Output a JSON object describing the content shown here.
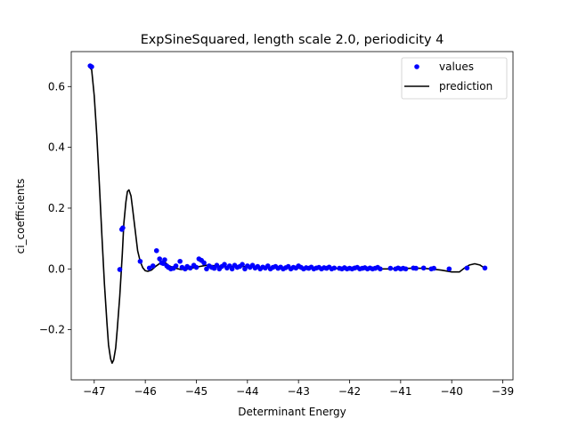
{
  "chart_data": {
    "type": "scatter",
    "title": "ExpSineSquared, length scale 2.0, periodicity 4",
    "xlabel": "Determinant Energy",
    "ylabel": "ci_coefficients",
    "xlim": [
      -47.45,
      -38.8
    ],
    "ylim": [
      -0.365,
      0.715
    ],
    "xticks": [
      -47,
      -46,
      -45,
      -44,
      -43,
      -42,
      -41,
      -40,
      -39
    ],
    "yticks": [
      -0.2,
      0.0,
      0.2,
      0.4,
      0.6
    ],
    "ytick_labels": [
      "−0.2",
      "0.0",
      "0.2",
      "0.4",
      "0.6"
    ],
    "xtick_labels": [
      "−47",
      "−46",
      "−45",
      "−44",
      "−43",
      "−42",
      "−41",
      "−40",
      "−39"
    ],
    "grid": false,
    "legend_position": "top-right",
    "colors": {
      "values": "#0000ff",
      "prediction": "#000000"
    },
    "series": [
      {
        "name": "values",
        "kind": "scatter",
        "points": [
          [
            -47.08,
            0.668
          ],
          [
            -47.05,
            0.665
          ],
          [
            -46.46,
            0.13
          ],
          [
            -46.44,
            0.135
          ],
          [
            -46.5,
            -0.002
          ],
          [
            -46.1,
            0.025
          ],
          [
            -45.92,
            0.003
          ],
          [
            -45.85,
            0.01
          ],
          [
            -45.78,
            0.06
          ],
          [
            -45.72,
            0.033
          ],
          [
            -45.68,
            0.02
          ],
          [
            -45.65,
            0.018
          ],
          [
            -45.62,
            0.03
          ],
          [
            -45.58,
            0.01
          ],
          [
            -45.55,
            0.005
          ],
          [
            -45.5,
            0.0
          ],
          [
            -45.45,
            0.002
          ],
          [
            -45.4,
            0.01
          ],
          [
            -45.32,
            0.025
          ],
          [
            -45.28,
            0.005
          ],
          [
            -45.22,
            0.0
          ],
          [
            -45.18,
            0.008
          ],
          [
            -45.12,
            0.003
          ],
          [
            -45.05,
            0.012
          ],
          [
            -45.0,
            0.005
          ],
          [
            -44.95,
            0.033
          ],
          [
            -44.9,
            0.028
          ],
          [
            -44.85,
            0.02
          ],
          [
            -44.8,
            0.0
          ],
          [
            -44.75,
            0.01
          ],
          [
            -44.7,
            0.005
          ],
          [
            -44.65,
            0.002
          ],
          [
            -44.6,
            0.012
          ],
          [
            -44.55,
            0.0
          ],
          [
            -44.5,
            0.008
          ],
          [
            -44.45,
            0.015
          ],
          [
            -44.4,
            0.003
          ],
          [
            -44.35,
            0.01
          ],
          [
            -44.3,
            0.0
          ],
          [
            -44.25,
            0.012
          ],
          [
            -44.2,
            0.005
          ],
          [
            -44.15,
            0.008
          ],
          [
            -44.1,
            0.015
          ],
          [
            -44.05,
            0.0
          ],
          [
            -44.0,
            0.01
          ],
          [
            -43.95,
            0.005
          ],
          [
            -43.9,
            0.012
          ],
          [
            -43.85,
            0.003
          ],
          [
            -43.8,
            0.008
          ],
          [
            -43.75,
            0.0
          ],
          [
            -43.7,
            0.006
          ],
          [
            -43.65,
            0.003
          ],
          [
            -43.6,
            0.01
          ],
          [
            -43.55,
            0.0
          ],
          [
            -43.5,
            0.005
          ],
          [
            -43.45,
            0.008
          ],
          [
            -43.4,
            0.002
          ],
          [
            -43.35,
            0.006
          ],
          [
            -43.3,
            0.0
          ],
          [
            -43.25,
            0.004
          ],
          [
            -43.2,
            0.008
          ],
          [
            -43.15,
            0.0
          ],
          [
            -43.1,
            0.005
          ],
          [
            -43.05,
            0.003
          ],
          [
            -43.0,
            0.01
          ],
          [
            -42.95,
            0.005
          ],
          [
            -42.9,
            0.0
          ],
          [
            -42.85,
            0.004
          ],
          [
            -42.8,
            0.002
          ],
          [
            -42.75,
            0.006
          ],
          [
            -42.7,
            0.0
          ],
          [
            -42.65,
            0.003
          ],
          [
            -42.6,
            0.005
          ],
          [
            -42.55,
            0.0
          ],
          [
            -42.5,
            0.004
          ],
          [
            -42.45,
            0.002
          ],
          [
            -42.4,
            0.006
          ],
          [
            -42.35,
            0.0
          ],
          [
            -42.3,
            0.003
          ],
          [
            -42.2,
            0.002
          ],
          [
            -42.15,
            0.0
          ],
          [
            -42.1,
            0.004
          ],
          [
            -42.05,
            0.0
          ],
          [
            -42.0,
            0.002
          ],
          [
            -41.95,
            0.0
          ],
          [
            -41.9,
            0.003
          ],
          [
            -41.85,
            0.005
          ],
          [
            -41.8,
            0.0
          ],
          [
            -41.75,
            0.002
          ],
          [
            -41.7,
            0.004
          ],
          [
            -41.65,
            0.0
          ],
          [
            -41.6,
            0.003
          ],
          [
            -41.55,
            0.0
          ],
          [
            -41.5,
            0.002
          ],
          [
            -41.45,
            0.005
          ],
          [
            -41.4,
            0.0
          ],
          [
            -41.2,
            0.002
          ],
          [
            -41.1,
            0.0
          ],
          [
            -41.05,
            0.003
          ],
          [
            -41.0,
            0.0
          ],
          [
            -40.95,
            0.002
          ],
          [
            -40.9,
            0.0
          ],
          [
            -40.75,
            0.003
          ],
          [
            -40.7,
            0.002
          ],
          [
            -40.55,
            0.003
          ],
          [
            -40.4,
            0.0
          ],
          [
            -40.35,
            0.002
          ],
          [
            -40.05,
            0.0
          ],
          [
            -39.7,
            0.003
          ],
          [
            -39.35,
            0.003
          ]
        ]
      },
      {
        "name": "prediction",
        "kind": "line",
        "points": [
          [
            -47.1,
            0.665
          ],
          [
            -47.05,
            0.655
          ],
          [
            -47.0,
            0.57
          ],
          [
            -46.95,
            0.44
          ],
          [
            -46.9,
            0.28
          ],
          [
            -46.85,
            0.11
          ],
          [
            -46.8,
            -0.05
          ],
          [
            -46.75,
            -0.18
          ],
          [
            -46.72,
            -0.25
          ],
          [
            -46.68,
            -0.295
          ],
          [
            -46.65,
            -0.31
          ],
          [
            -46.62,
            -0.3
          ],
          [
            -46.58,
            -0.26
          ],
          [
            -46.55,
            -0.2
          ],
          [
            -46.5,
            -0.09
          ],
          [
            -46.45,
            0.05
          ],
          [
            -46.42,
            0.15
          ],
          [
            -46.38,
            0.22
          ],
          [
            -46.35,
            0.255
          ],
          [
            -46.32,
            0.26
          ],
          [
            -46.28,
            0.24
          ],
          [
            -46.25,
            0.2
          ],
          [
            -46.2,
            0.13
          ],
          [
            -46.15,
            0.06
          ],
          [
            -46.1,
            0.025
          ],
          [
            -46.05,
            0.004
          ],
          [
            -46.0,
            -0.006
          ],
          [
            -45.95,
            -0.008
          ],
          [
            -45.88,
            -0.004
          ],
          [
            -45.8,
            0.008
          ],
          [
            -45.7,
            0.02
          ],
          [
            -45.62,
            0.022
          ],
          [
            -45.55,
            0.012
          ],
          [
            -45.45,
            0.004
          ],
          [
            -45.3,
            -0.002
          ],
          [
            -45.15,
            0.0
          ],
          [
            -45.0,
            0.006
          ],
          [
            -44.8,
            0.012
          ],
          [
            -44.6,
            0.01
          ],
          [
            -44.4,
            0.007
          ],
          [
            -44.2,
            0.008
          ],
          [
            -44.0,
            0.008
          ],
          [
            -43.8,
            0.006
          ],
          [
            -43.6,
            0.004
          ],
          [
            -43.4,
            0.003
          ],
          [
            -43.2,
            0.003
          ],
          [
            -43.0,
            0.003
          ],
          [
            -42.8,
            0.002
          ],
          [
            -42.6,
            0.003
          ],
          [
            -42.4,
            0.002
          ],
          [
            -42.2,
            0.001
          ],
          [
            -42.0,
            0.002
          ],
          [
            -41.8,
            0.001
          ],
          [
            -41.6,
            0.0
          ],
          [
            -41.4,
            0.0
          ],
          [
            -41.2,
            0.0
          ],
          [
            -41.0,
            0.001
          ],
          [
            -40.8,
            0.002
          ],
          [
            -40.6,
            0.002
          ],
          [
            -40.4,
            0.0
          ],
          [
            -40.2,
            -0.004
          ],
          [
            -40.0,
            -0.01
          ],
          [
            -39.85,
            -0.01
          ],
          [
            -39.75,
            0.003
          ],
          [
            -39.65,
            0.013
          ],
          [
            -39.55,
            0.017
          ],
          [
            -39.45,
            0.013
          ],
          [
            -39.35,
            0.002
          ]
        ]
      }
    ]
  }
}
